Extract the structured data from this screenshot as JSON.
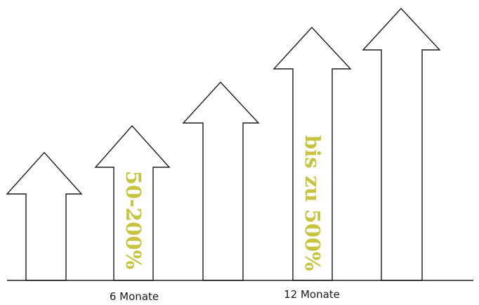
{
  "diagram": {
    "growth_label_short": "50-200%",
    "growth_label_long": "bis zu 500%",
    "axis_label_6m": "6 Monate",
    "axis_label_12m": "12 Monate",
    "colors": {
      "accent": "#c6c441",
      "stroke": "#1a1a1a",
      "background": "#ffffff"
    },
    "arrow_count": 5
  }
}
